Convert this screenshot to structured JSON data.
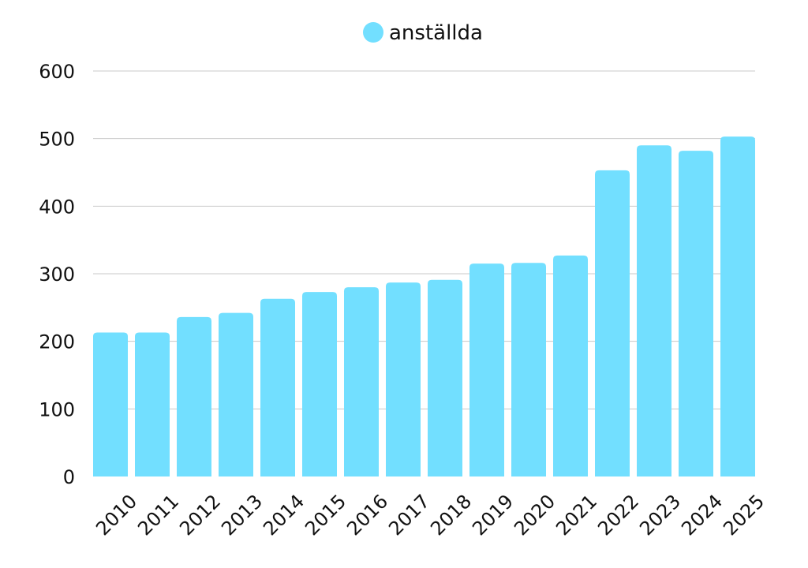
{
  "chart_data": {
    "type": "bar",
    "title": "",
    "xlabel": "",
    "ylabel": "",
    "categories": [
      "2010",
      "2011",
      "2012",
      "2013",
      "2014",
      "2015",
      "2016",
      "2017",
      "2018",
      "2019",
      "2020",
      "2021",
      "2022",
      "2023",
      "2024",
      "2025"
    ],
    "series": [
      {
        "name": "anställda",
        "color": "#72DFFF",
        "values": [
          213,
          213,
          236,
          242,
          263,
          273,
          280,
          287,
          291,
          315,
          316,
          327,
          453,
          490,
          482,
          503
        ]
      }
    ],
    "ylim": [
      0,
      600
    ],
    "yticks": [
      "0",
      "100",
      "200",
      "300",
      "400",
      "500",
      "600"
    ],
    "grid": true,
    "legend": {
      "position": "top-center",
      "label": "anställda"
    }
  }
}
